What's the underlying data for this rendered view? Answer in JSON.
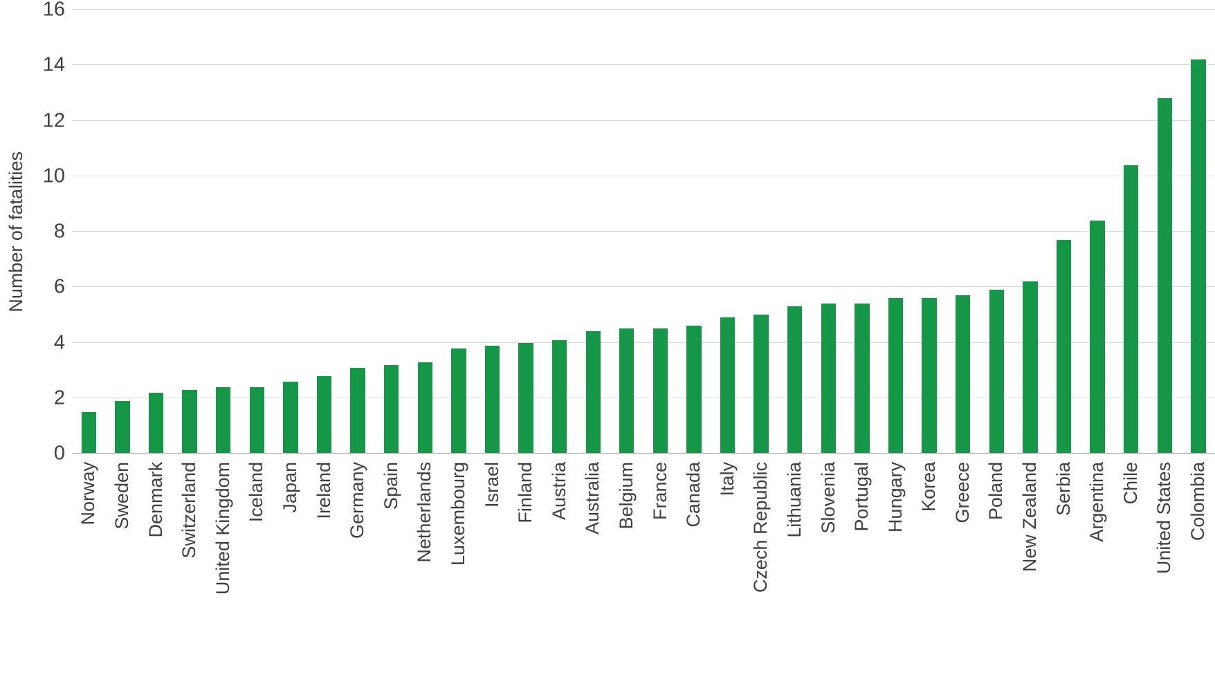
{
  "chart_data": {
    "type": "bar",
    "title": "",
    "xlabel": "",
    "ylabel": "Number of fatalities",
    "ylim": [
      0,
      16
    ],
    "ytick_step": 2,
    "grid": true,
    "legend": "none",
    "bar_color": "#169647",
    "categories": [
      "Norway",
      "Sweden",
      "Denmark",
      "Switzerland",
      "United Kingdom",
      "Iceland",
      "Japan",
      "Ireland",
      "Germany",
      "Spain",
      "Netherlands",
      "Luxembourg",
      "Israel",
      "Finland",
      "Austria",
      "Australia",
      "Belgium",
      "France",
      "Canada",
      "Italy",
      "Czech Republic",
      "Lithuania",
      "Slovenia",
      "Portugal",
      "Hungary",
      "Korea",
      "Greece",
      "Poland",
      "New Zealand",
      "Serbia",
      "Argentina",
      "Chile",
      "United States",
      "Colombia"
    ],
    "values": [
      1.5,
      1.9,
      2.2,
      2.3,
      2.4,
      2.4,
      2.6,
      2.8,
      3.1,
      3.2,
      3.3,
      3.8,
      3.9,
      4.0,
      4.1,
      4.4,
      4.5,
      4.5,
      4.6,
      4.9,
      5.0,
      5.3,
      5.4,
      5.4,
      5.6,
      5.6,
      5.7,
      5.9,
      6.2,
      7.7,
      8.4,
      10.4,
      12.8,
      14.2
    ]
  }
}
